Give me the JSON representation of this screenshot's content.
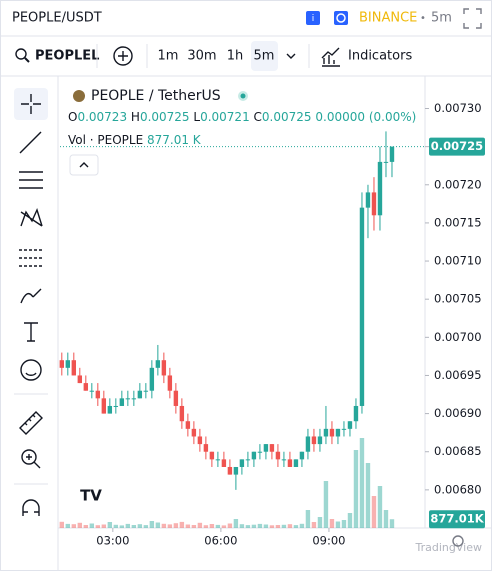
{
  "header": {
    "symbol": "PEOPLE/USDT",
    "exchange": "BINANCE",
    "separator": "•",
    "interval": "5m"
  },
  "toolbar": {
    "search": "PEOPLEL",
    "intervals": [
      "1m",
      "30m",
      "1h",
      "5m"
    ],
    "indicators": "Indicators"
  },
  "legend": {
    "title": "PEOPLE / TetherUS",
    "o": "O",
    "h": "H",
    "l": "L",
    "c": "C",
    "change": "0.00000 (0.00%)",
    "volume_title": "Vol · PEOPLE",
    "volume_value": "877.01 K"
  },
  "volume_axis_label": "877.01K",
  "watermark": "TradingView",
  "chart_data": {
    "type": "candlestick",
    "up_color": "#26a69a",
    "down_color": "#ef5350",
    "grid": false,
    "x": [
      95,
      105,
      115,
      125,
      135,
      145,
      155,
      165,
      175,
      185,
      195,
      205,
      215,
      225,
      235,
      245,
      255,
      265,
      275,
      285,
      295,
      305,
      315,
      325,
      335,
      345,
      355,
      365,
      375,
      385,
      395,
      405,
      415,
      425,
      435,
      445,
      455,
      465,
      475,
      485,
      495,
      505,
      515,
      525,
      535,
      545,
      555,
      565,
      575,
      585,
      595,
      605,
      615,
      625,
      635,
      645
    ],
    "open": [
      0.00697,
      0.00696,
      0.00697,
      0.00695,
      0.00694,
      0.00693,
      0.00693,
      0.00692,
      0.0069,
      0.00691,
      0.00691,
      0.00692,
      0.00692,
      0.00692,
      0.00693,
      0.00693,
      0.00696,
      0.00697,
      0.00695,
      0.00693,
      0.00691,
      0.00689,
      0.00688,
      0.00687,
      0.00686,
      0.00685,
      0.00684,
      0.00684,
      0.00683,
      0.00682,
      0.00683,
      0.00684,
      0.00684,
      0.00685,
      0.00685,
      0.00686,
      0.00685,
      0.00684,
      0.00684,
      0.00683,
      0.00684,
      0.00685,
      0.00687,
      0.00686,
      0.00687,
      0.00688,
      0.00687,
      0.00688,
      0.00688,
      0.00689,
      0.00691,
      0.00717,
      0.00719,
      0.00716,
      0.00723,
      0.00723
    ],
    "high": [
      0.00698,
      0.00698,
      0.00698,
      0.00696,
      0.00695,
      0.00694,
      0.00694,
      0.00693,
      0.00692,
      0.00692,
      0.00693,
      0.00693,
      0.00693,
      0.00694,
      0.00694,
      0.00697,
      0.00699,
      0.00698,
      0.00696,
      0.00694,
      0.00692,
      0.0069,
      0.00689,
      0.00688,
      0.00687,
      0.00685,
      0.00685,
      0.00685,
      0.00684,
      0.00683,
      0.00684,
      0.00685,
      0.00685,
      0.00686,
      0.00686,
      0.00686,
      0.00686,
      0.00685,
      0.00685,
      0.00684,
      0.00685,
      0.00688,
      0.00688,
      0.00688,
      0.00691,
      0.00689,
      0.00688,
      0.00689,
      0.00689,
      0.00692,
      0.00719,
      0.0072,
      0.00721,
      0.00725,
      0.00727,
      0.00725
    ],
    "low": [
      0.00695,
      0.00695,
      0.00695,
      0.00694,
      0.00693,
      0.00692,
      0.00691,
      0.0069,
      0.0069,
      0.0069,
      0.00691,
      0.00691,
      0.00691,
      0.00692,
      0.00692,
      0.00692,
      0.00695,
      0.00694,
      0.00692,
      0.0069,
      0.00688,
      0.00687,
      0.00686,
      0.00685,
      0.00684,
      0.00683,
      0.00683,
      0.00683,
      0.00682,
      0.0068,
      0.00682,
      0.00683,
      0.00683,
      0.00684,
      0.00684,
      0.00684,
      0.00683,
      0.00683,
      0.00683,
      0.00683,
      0.00683,
      0.00684,
      0.00685,
      0.00685,
      0.00686,
      0.00686,
      0.00686,
      0.00687,
      0.00687,
      0.00688,
      0.0069,
      0.00713,
      0.00714,
      0.00714,
      0.00721,
      0.00721
    ],
    "close": [
      0.00696,
      0.00697,
      0.00695,
      0.00694,
      0.00693,
      0.00693,
      0.00692,
      0.0069,
      0.00691,
      0.00691,
      0.00692,
      0.00692,
      0.00692,
      0.00693,
      0.00693,
      0.00696,
      0.00697,
      0.00695,
      0.00693,
      0.00691,
      0.00689,
      0.00688,
      0.00687,
      0.00686,
      0.00685,
      0.00684,
      0.00684,
      0.00683,
      0.00682,
      0.00683,
      0.00684,
      0.00684,
      0.00685,
      0.00685,
      0.00686,
      0.00685,
      0.00684,
      0.00684,
      0.00683,
      0.00684,
      0.00685,
      0.00687,
      0.00686,
      0.00687,
      0.00688,
      0.00687,
      0.00688,
      0.00688,
      0.00689,
      0.00691,
      0.00717,
      0.00719,
      0.00716,
      0.00723,
      0.00723,
      0.00725
    ],
    "volume": [
      620000,
      410000,
      380000,
      520000,
      300000,
      450000,
      280000,
      350000,
      600000,
      320000,
      260000,
      410000,
      300000,
      380000,
      290000,
      700000,
      550000,
      420000,
      360000,
      480000,
      610000,
      350000,
      300000,
      520000,
      280000,
      400000,
      310000,
      260000,
      450000,
      900000,
      380000,
      290000,
      330000,
      410000,
      350000,
      270000,
      300000,
      320000,
      380000,
      290000,
      420000,
      1800000,
      600000,
      1100000,
      4700000,
      900000,
      650000,
      800000,
      1500000,
      7800000,
      9000000,
      6500000,
      3200000,
      4200000,
      1800000,
      877010
    ],
    "xlim": [
      92,
      700
    ],
    "xticks": [
      {
        "value": 180,
        "label": "03:00"
      },
      {
        "value": 360,
        "label": "06:00"
      },
      {
        "value": 540,
        "label": "09:00"
      }
    ],
    "ylim": [
      0.00675,
      0.00734
    ],
    "yticks": [
      {
        "value": 0.0068,
        "label": "0.00680"
      },
      0.00685,
      {
        "value": 0.0069,
        "label": "0.00690"
      },
      0.00695,
      {
        "value": 0.007,
        "label": "0.00700"
      },
      0.00705,
      {
        "value": 0.0071,
        "label": "0.00710"
      },
      0.00715,
      {
        "value": 0.0072,
        "label": "0.00720"
      },
      0.00725,
      {
        "value": 0.0073,
        "label": "0.00730"
      }
    ]
  }
}
